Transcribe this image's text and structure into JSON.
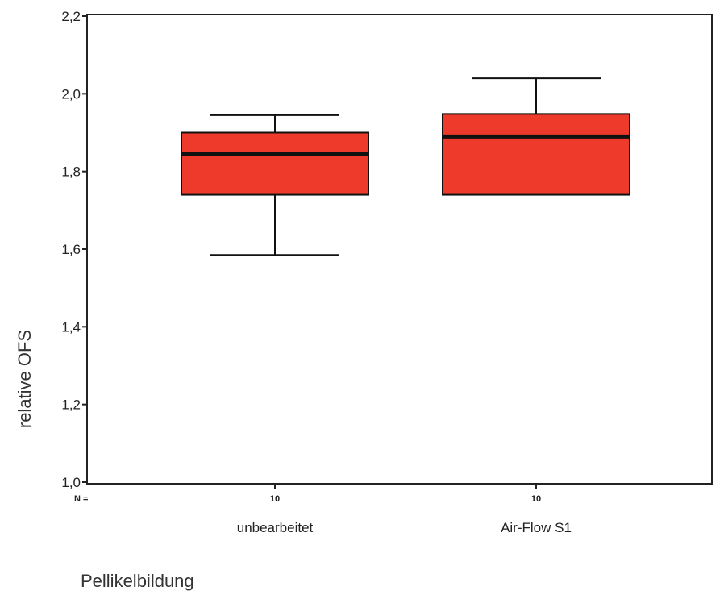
{
  "chart_data": {
    "type": "boxplot",
    "xlabel": "Pellikelbildung",
    "ylabel": "relative OFS",
    "ylim": [
      1.0,
      2.2
    ],
    "yticks": [
      1.0,
      1.2,
      1.4,
      1.6,
      1.8,
      2.0,
      2.2
    ],
    "ytick_labels": [
      "1,0",
      "1,2",
      "1,4",
      "1,6",
      "1,8",
      "2,0",
      "2,2"
    ],
    "n_label": "N =",
    "grid": false,
    "legend": "none",
    "box_color": "#ee3a2a",
    "categories": [
      "unbearbeitet",
      "Air-Flow S1"
    ],
    "n": [
      "10",
      "10"
    ],
    "boxes": [
      {
        "category": "unbearbeitet",
        "min": 1.585,
        "q1": 1.74,
        "median": 1.845,
        "q3": 1.9,
        "max": 1.945
      },
      {
        "category": "Air-Flow S1",
        "min": 1.74,
        "q1": 1.74,
        "median": 1.89,
        "q3": 1.948,
        "max": 2.04
      }
    ]
  }
}
